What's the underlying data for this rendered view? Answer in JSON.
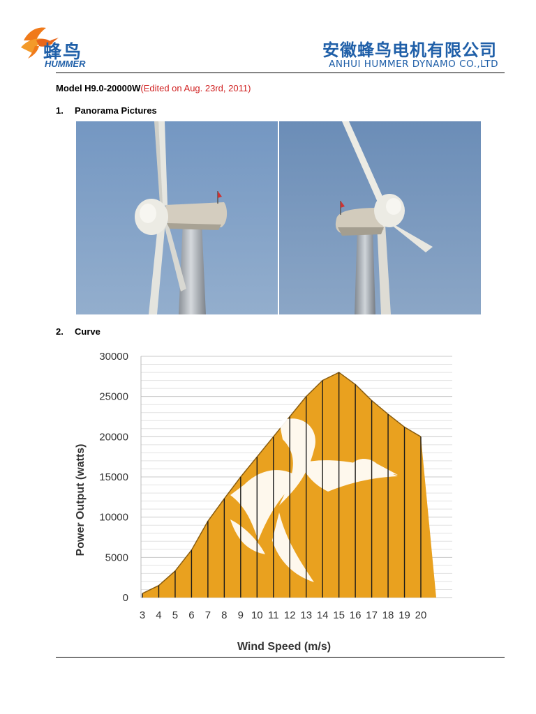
{
  "header": {
    "logo_cn": "蜂鸟",
    "logo_en": "HUMMER",
    "company_cn": "安徽蜂鸟电机有限公司",
    "company_en": "ANHUI HUMMER DYNAMO CO.,LTD",
    "brand_blue": "#1f5fa8",
    "logo_orange": "#f07a1a"
  },
  "model": {
    "label": "Model H9.0-20000W",
    "edited": "(Edited on Aug. 23rd, 2011)"
  },
  "sections": [
    {
      "num": "1.",
      "title": "Panorama Pictures"
    },
    {
      "num": "2.",
      "title": "Curve"
    }
  ],
  "chart_data": {
    "type": "area",
    "title": "",
    "xlabel": "Wind Speed (m/s)",
    "ylabel": "Power Output (watts)",
    "x": [
      3,
      4,
      5,
      6,
      7,
      8,
      9,
      10,
      11,
      12,
      13,
      14,
      15,
      16,
      17,
      18,
      19,
      20
    ],
    "values": [
      500,
      1500,
      3300,
      5900,
      9500,
      12300,
      15000,
      17500,
      20000,
      22500,
      25000,
      27000,
      28000,
      26500,
      24500,
      22800,
      21200,
      20000
    ],
    "yticks": [
      "0",
      "5000",
      "10000",
      "15000",
      "20000",
      "25000",
      "30000"
    ],
    "ylim": [
      0,
      30000
    ],
    "grid": true,
    "fill_color": "#e9a11f"
  }
}
